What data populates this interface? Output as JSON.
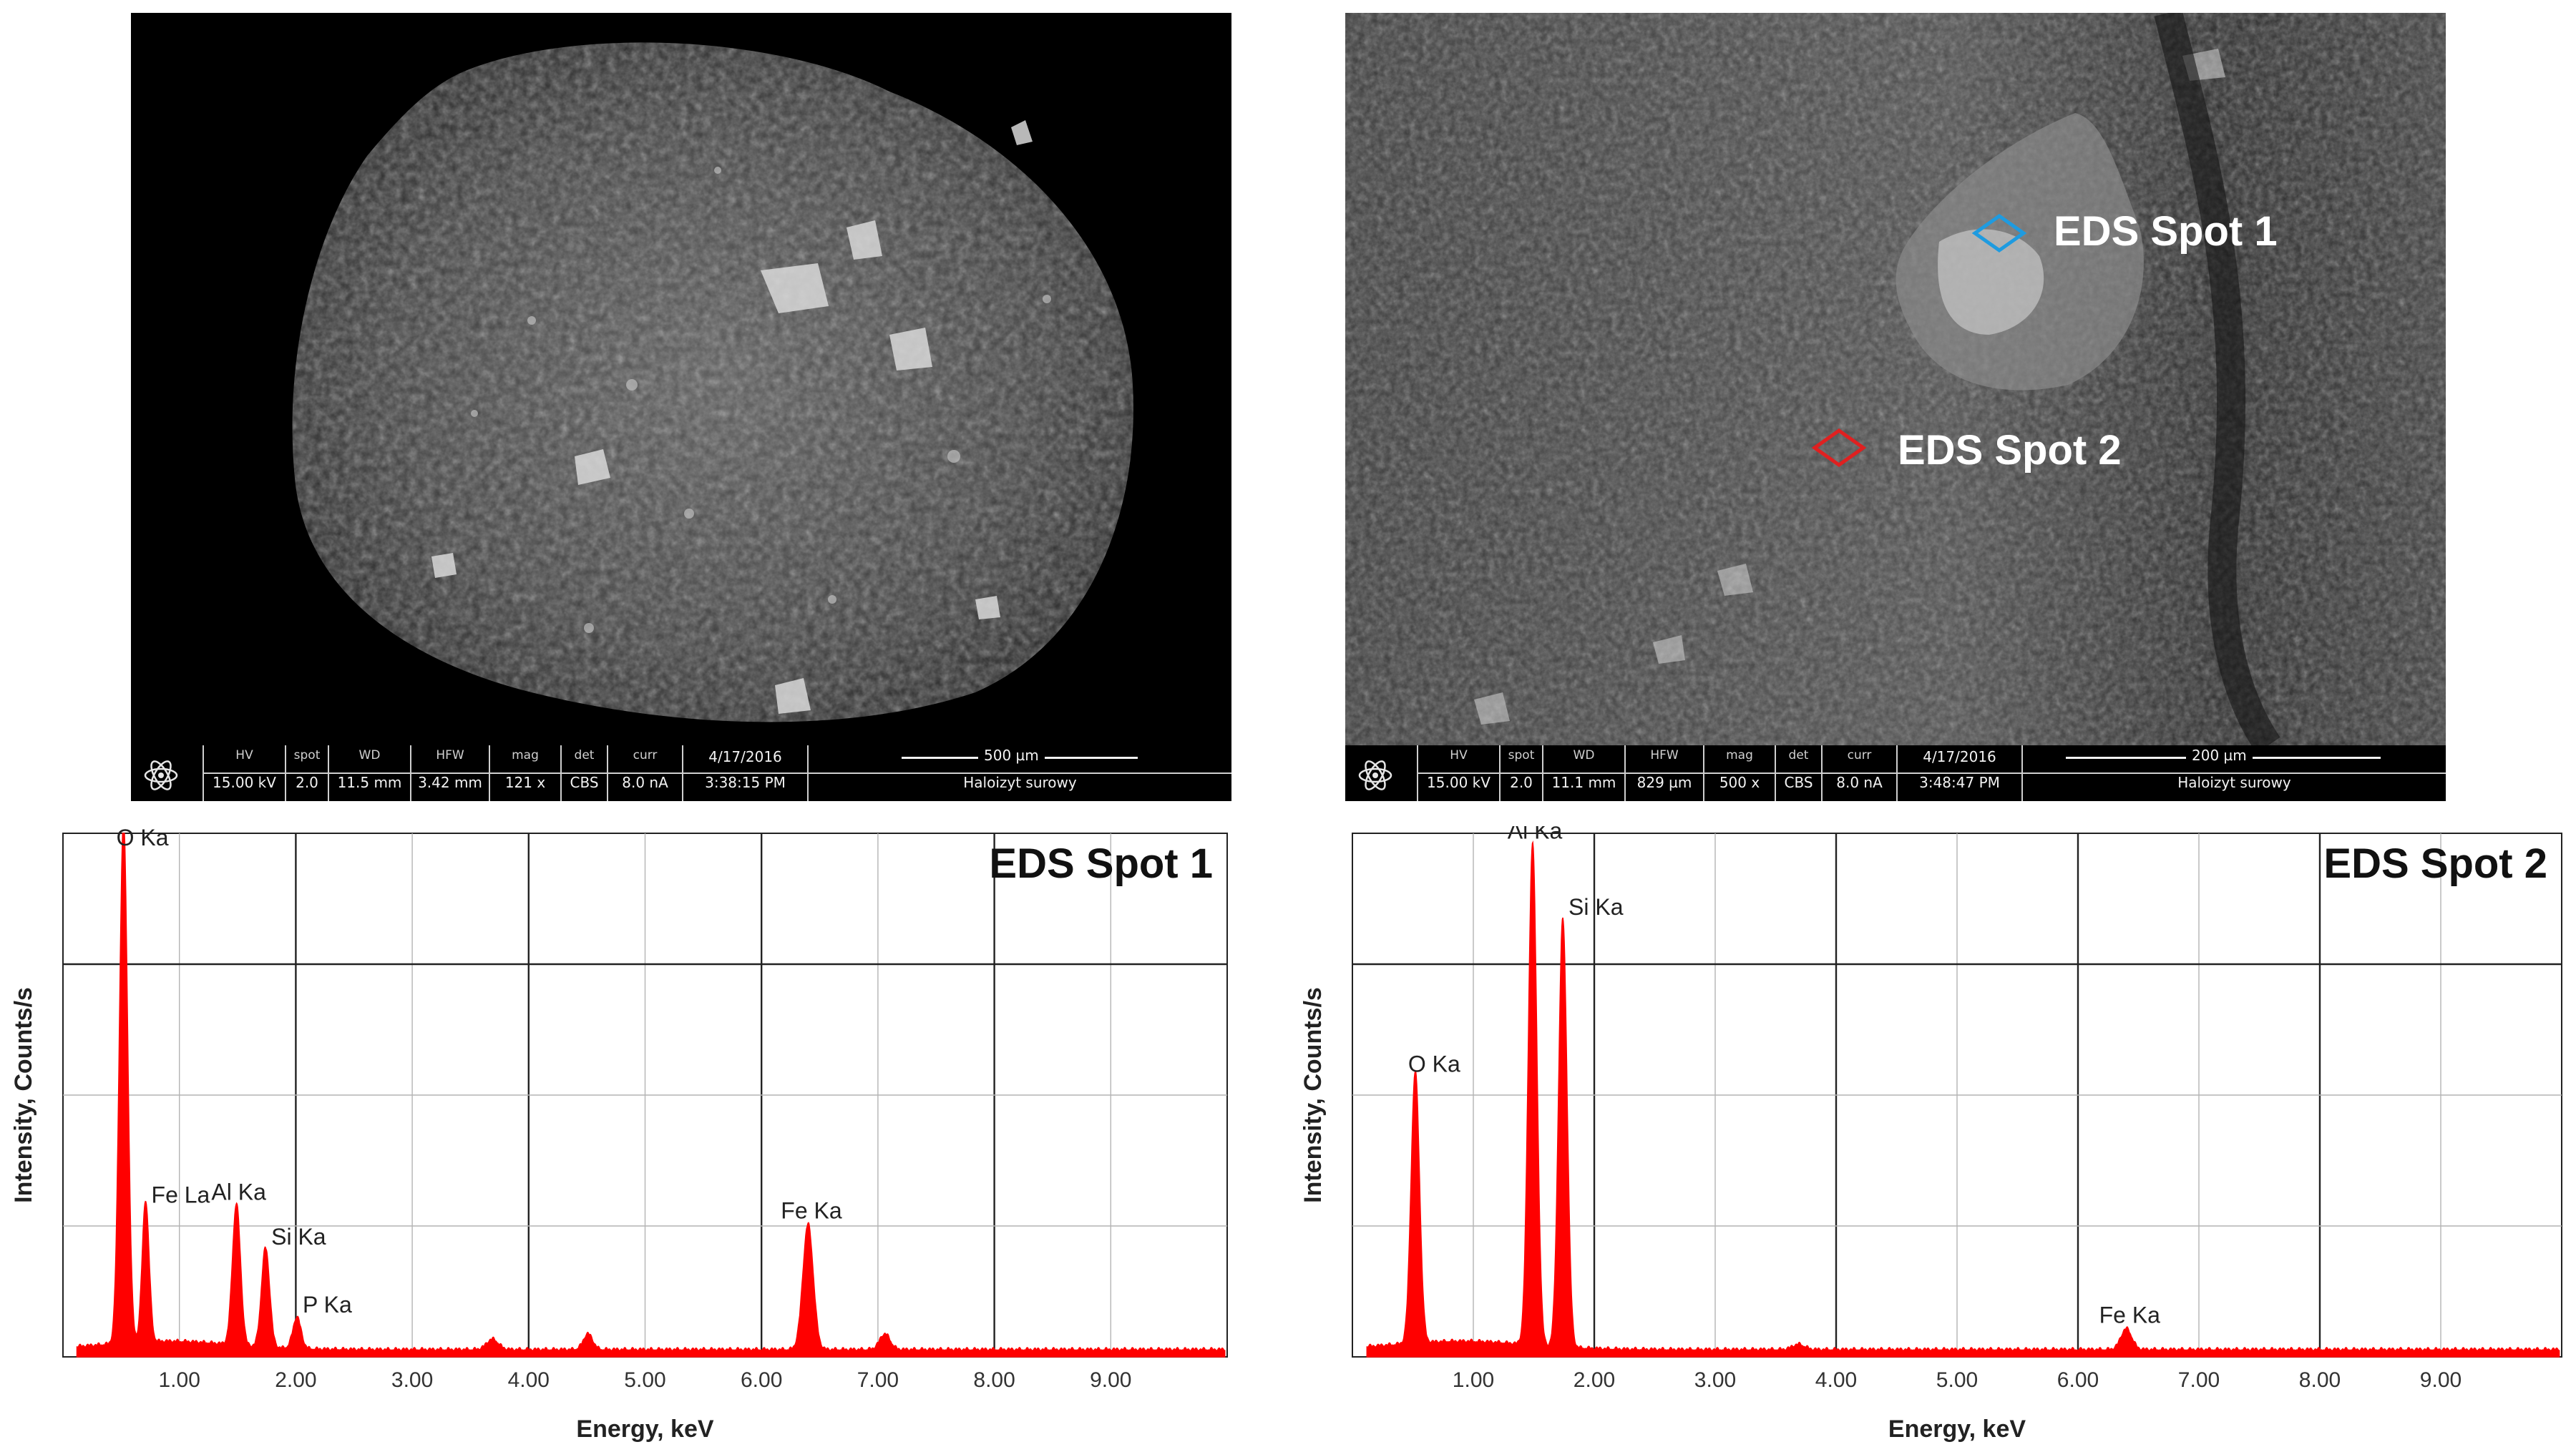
{
  "sem_images": [
    {
      "id": "left",
      "databar": {
        "headers": [
          "HV",
          "spot",
          "WD",
          "HFW",
          "mag",
          "det",
          "curr"
        ],
        "values": [
          "15.00 kV",
          "2.0",
          "11.5 mm",
          "3.42 mm",
          "121 x",
          "CBS",
          "8.0 nA"
        ],
        "date": "4/17/2016",
        "time": "3:38:15 PM",
        "scale_label": "500 µm",
        "sample_name": "Haloizyt surowy"
      },
      "markers": []
    },
    {
      "id": "right",
      "databar": {
        "headers": [
          "HV",
          "spot",
          "WD",
          "HFW",
          "mag",
          "det",
          "curr"
        ],
        "values": [
          "15.00 kV",
          "2.0",
          "11.1 mm",
          "829 µm",
          "500 x",
          "CBS",
          "8.0 nA"
        ],
        "date": "4/17/2016",
        "time": "3:48:47 PM",
        "scale_label": "200 µm",
        "sample_name": "Haloizyt surowy"
      },
      "markers": [
        {
          "label": "EDS Spot 1",
          "color": "#1e9be0"
        },
        {
          "label": "EDS Spot 2",
          "color": "#e02020"
        }
      ]
    }
  ],
  "chart_data": [
    {
      "type": "line",
      "title": "EDS Spot 1",
      "xlabel": "Energy, keV",
      "ylabel": "Intensity, Counts/s",
      "xlim": [
        0,
        10
      ],
      "ylim": [
        0,
        100
      ],
      "grid": true,
      "xticks": [
        "1.00",
        "2.00",
        "3.00",
        "4.00",
        "5.00",
        "6.00",
        "7.00",
        "8.00",
        "9.00"
      ],
      "color": "#ff0000",
      "peaks": [
        {
          "label": "O Ka",
          "x": 0.52,
          "y": 100,
          "w": 0.035
        },
        {
          "label": "Fe La",
          "x": 0.71,
          "y": 27,
          "w": 0.03
        },
        {
          "label": "Al Ka",
          "x": 1.49,
          "y": 27,
          "w": 0.035
        },
        {
          "label": "Si Ka",
          "x": 1.74,
          "y": 19,
          "w": 0.035
        },
        {
          "label": "P Ka",
          "x": 2.01,
          "y": 6,
          "w": 0.035
        },
        {
          "label": "",
          "x": 3.69,
          "y": 2,
          "w": 0.05
        },
        {
          "label": "",
          "x": 4.51,
          "y": 3,
          "w": 0.04
        },
        {
          "label": "Fe Ka",
          "x": 6.4,
          "y": 24,
          "w": 0.045
        },
        {
          "label": "",
          "x": 7.06,
          "y": 3,
          "w": 0.045
        }
      ]
    },
    {
      "type": "line",
      "title": "EDS Spot 2",
      "xlabel": "Energy, keV",
      "ylabel": "Intensity, Counts/s",
      "xlim": [
        0,
        10
      ],
      "ylim": [
        0,
        100
      ],
      "grid": true,
      "xticks": [
        "1.00",
        "2.00",
        "3.00",
        "4.00",
        "5.00",
        "6.00",
        "7.00",
        "8.00",
        "9.00"
      ],
      "color": "#ff0000",
      "peaks": [
        {
          "label": "O Ka",
          "x": 0.52,
          "y": 52,
          "w": 0.035
        },
        {
          "label": "Al Ka",
          "x": 1.49,
          "y": 96,
          "w": 0.035
        },
        {
          "label": "Si Ka",
          "x": 1.74,
          "y": 82,
          "w": 0.035
        },
        {
          "label": "",
          "x": 3.69,
          "y": 1,
          "w": 0.05
        },
        {
          "label": "Fe Ka",
          "x": 6.4,
          "y": 4,
          "w": 0.045
        }
      ]
    }
  ]
}
